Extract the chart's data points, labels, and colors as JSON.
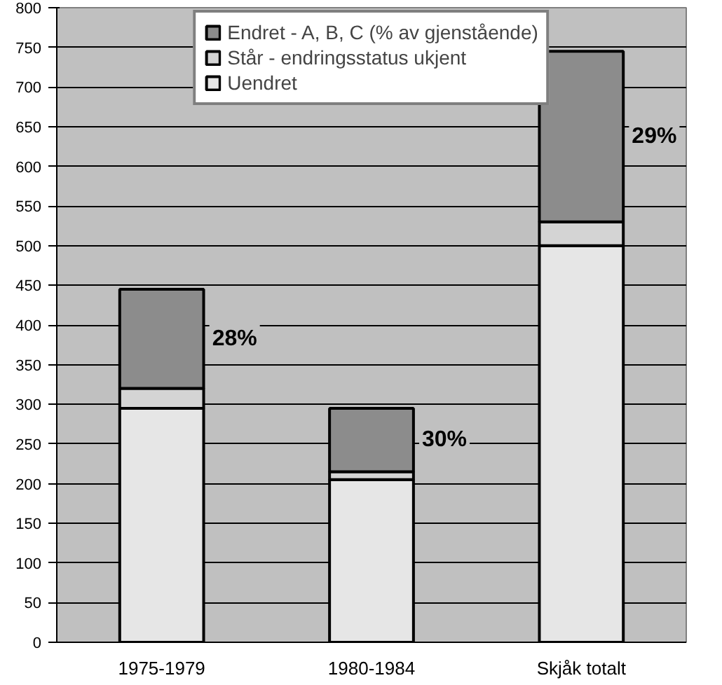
{
  "chart_data": {
    "type": "bar",
    "stacked": true,
    "categories": [
      "1975-1979",
      "1980-1984",
      "Skjåk totalt"
    ],
    "series": [
      {
        "name": "Uendret",
        "color": "#e6e6e6",
        "values": [
          295,
          205,
          500
        ]
      },
      {
        "name": "Står - endringsstatus ukjent",
        "color": "#d4d4d4",
        "values": [
          25,
          10,
          30
        ]
      },
      {
        "name": "Endret - A, B, C (% av gjenstående)",
        "color": "#8c8c8c",
        "values": [
          125,
          80,
          215
        ]
      }
    ],
    "ylim": [
      0,
      800
    ],
    "yticks": [
      0,
      50,
      100,
      150,
      200,
      250,
      300,
      350,
      400,
      450,
      500,
      550,
      600,
      650,
      700,
      750,
      800
    ],
    "grid": "y",
    "legend": "top",
    "annotations": [
      "28%",
      "30%",
      "29%"
    ]
  }
}
